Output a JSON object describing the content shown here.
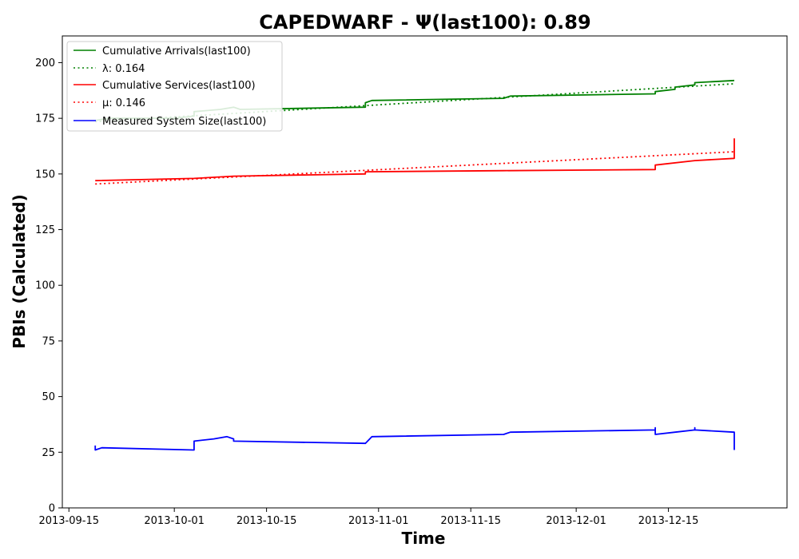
{
  "chart_data": {
    "type": "line",
    "title": "CAPEDWARF -  Ψ(last100): 0.89",
    "xlabel": "Time",
    "ylabel": "PBIs (Calculated)",
    "xlim": [
      "2013-09-14",
      "2014-01-02"
    ],
    "ylim": [
      0,
      212
    ],
    "x_ticks": [
      "2013-09-15",
      "2013-10-01",
      "2013-10-15",
      "2013-11-01",
      "2013-11-15",
      "2013-12-01",
      "2013-12-15"
    ],
    "y_ticks": [
      0,
      25,
      50,
      75,
      100,
      125,
      150,
      175,
      200
    ],
    "grid": false,
    "legend_position": "top-left",
    "series": [
      {
        "name": "Cumulative Arrivals(last100)",
        "style": "solid",
        "color": "#008000",
        "x": [
          "2013-09-19",
          "2013-09-21",
          "2013-10-01",
          "2013-10-04",
          "2013-10-04",
          "2013-10-08",
          "2013-10-10",
          "2013-10-11",
          "2013-10-30",
          "2013-10-30",
          "2013-10-31",
          "2013-11-20",
          "2013-11-21",
          "2013-12-13",
          "2013-12-13",
          "2013-12-16",
          "2013-12-16",
          "2013-12-19",
          "2013-12-19",
          "2013-12-25"
        ],
        "y": [
          174,
          175,
          175,
          176,
          178,
          179,
          180,
          179,
          180,
          182,
          183,
          184,
          185,
          186,
          187,
          188,
          189,
          190,
          191,
          192
        ]
      },
      {
        "name": "λ: 0.164",
        "style": "dotted",
        "color": "#008000",
        "x": [
          "2013-09-19",
          "2013-12-25"
        ],
        "y": [
          173.5,
          190.5
        ]
      },
      {
        "name": "Cumulative Services(last100)",
        "style": "solid",
        "color": "#ff0000",
        "x": [
          "2013-09-19",
          "2013-10-04",
          "2013-10-10",
          "2013-10-30",
          "2013-10-30",
          "2013-11-20",
          "2013-12-13",
          "2013-12-13",
          "2013-12-19",
          "2013-12-25",
          "2013-12-25"
        ],
        "y": [
          147,
          148,
          149,
          150,
          151,
          151.5,
          152,
          154,
          156,
          157,
          166
        ]
      },
      {
        "name": "μ: 0.146",
        "style": "dotted",
        "color": "#ff0000",
        "x": [
          "2013-09-19",
          "2013-12-25"
        ],
        "y": [
          145.5,
          160
        ]
      },
      {
        "name": "Measured System Size(last100)",
        "style": "solid",
        "color": "#0000ff",
        "x": [
          "2013-09-19",
          "2013-09-19",
          "2013-09-20",
          "2013-10-04",
          "2013-10-04",
          "2013-10-07",
          "2013-10-09",
          "2013-10-10",
          "2013-10-10",
          "2013-10-30",
          "2013-10-31",
          "2013-11-20",
          "2013-11-21",
          "2013-12-13",
          "2013-12-13",
          "2013-12-13",
          "2013-12-16",
          "2013-12-19",
          "2013-12-19",
          "2013-12-19",
          "2013-12-25",
          "2013-12-25"
        ],
        "y": [
          28,
          26,
          27,
          26,
          30,
          31,
          32,
          31,
          30,
          29,
          32,
          33,
          34,
          35,
          36,
          33,
          34,
          35,
          36,
          35,
          34,
          26
        ]
      }
    ]
  }
}
